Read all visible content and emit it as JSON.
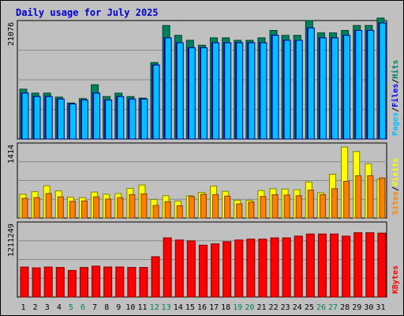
{
  "title": "Daily usage for July 2025",
  "colors": {
    "background": "#c0c0c0",
    "title": "#0000cc",
    "grid": "#8a8a8a",
    "hits": "#00805c",
    "files": "#0000ff",
    "pages": "#00c0ff",
    "visits": "#ffff00",
    "sites": "#ff8000",
    "kbytes": "#ff0000",
    "weekend_day": "#00805c",
    "weekday": "#000000"
  },
  "chart_data": [
    {
      "type": "bar",
      "panel": "hits-files-pages",
      "axis_max_label": "21076",
      "ylim": [
        0,
        24000
      ],
      "legend": [
        "Pages",
        "Files",
        "Hits"
      ],
      "series": [
        {
          "name": "Hits",
          "values": [
            10100,
            9300,
            9300,
            8500,
            7300,
            8200,
            11000,
            8600,
            9300,
            8600,
            8300,
            15500,
            23000,
            21000,
            20000,
            19000,
            20500,
            20500,
            20000,
            20000,
            20500,
            22000,
            21000,
            21000,
            24000,
            21500,
            21500,
            22000,
            23000,
            23000,
            24500
          ]
        },
        {
          "name": "Files",
          "values": [
            9300,
            8600,
            8600,
            8100,
            7100,
            7900,
            9300,
            7900,
            8600,
            8100,
            8100,
            15000,
            20500,
            19500,
            18500,
            18500,
            19500,
            19500,
            19500,
            19500,
            19500,
            21000,
            20000,
            20000,
            22500,
            20500,
            20500,
            21000,
            22000,
            22000,
            23500
          ]
        },
        {
          "name": "Pages",
          "values": [
            9300,
            8600,
            8600,
            8100,
            7100,
            7900,
            9300,
            7900,
            8600,
            8100,
            8100,
            15000,
            20500,
            19500,
            18500,
            18500,
            19500,
            19500,
            19500,
            19500,
            19500,
            21000,
            20000,
            20000,
            22500,
            20500,
            20500,
            21000,
            22000,
            22000,
            23500
          ]
        }
      ]
    },
    {
      "type": "bar",
      "panel": "visits-sites",
      "axis_max_label": "1414",
      "ylim": [
        0,
        2020
      ],
      "legend": [
        "Sites",
        "Visits"
      ],
      "series": [
        {
          "name": "Visits",
          "values": [
            640,
            710,
            870,
            730,
            560,
            550,
            700,
            640,
            660,
            800,
            890,
            500,
            600,
            460,
            600,
            690,
            860,
            720,
            480,
            480,
            740,
            790,
            780,
            760,
            970,
            680,
            1180,
            1910,
            1790,
            1460,
            1040
          ]
        },
        {
          "name": "Sites",
          "values": [
            530,
            550,
            660,
            570,
            450,
            460,
            570,
            510,
            550,
            630,
            650,
            340,
            440,
            330,
            580,
            640,
            630,
            590,
            380,
            430,
            580,
            630,
            620,
            600,
            750,
            630,
            790,
            990,
            1140,
            1140,
            1080
          ]
        }
      ]
    },
    {
      "type": "bar",
      "panel": "kbytes",
      "axis_max_label": "1211249",
      "ylim": [
        0,
        1750000
      ],
      "legend": [
        "KBytes"
      ],
      "series": [
        {
          "name": "KBytes",
          "values": [
            700000,
            680000,
            700000,
            690000,
            620000,
            690000,
            720000,
            700000,
            700000,
            690000,
            690000,
            940000,
            1380000,
            1330000,
            1310000,
            1210000,
            1240000,
            1290000,
            1330000,
            1350000,
            1350000,
            1380000,
            1380000,
            1420000,
            1470000,
            1470000,
            1470000,
            1420000,
            1500000,
            1500000,
            1490000
          ]
        }
      ]
    }
  ],
  "x_labels": [
    "1",
    "2",
    "3",
    "4",
    "5",
    "6",
    "7",
    "8",
    "9",
    "10",
    "11",
    "12",
    "13",
    "14",
    "15",
    "16",
    "17",
    "18",
    "19",
    "20",
    "21",
    "22",
    "23",
    "24",
    "25",
    "26",
    "27",
    "28",
    "29",
    "30",
    "31"
  ],
  "weekend_days": [
    5,
    6,
    12,
    13,
    19,
    20,
    26,
    27
  ]
}
